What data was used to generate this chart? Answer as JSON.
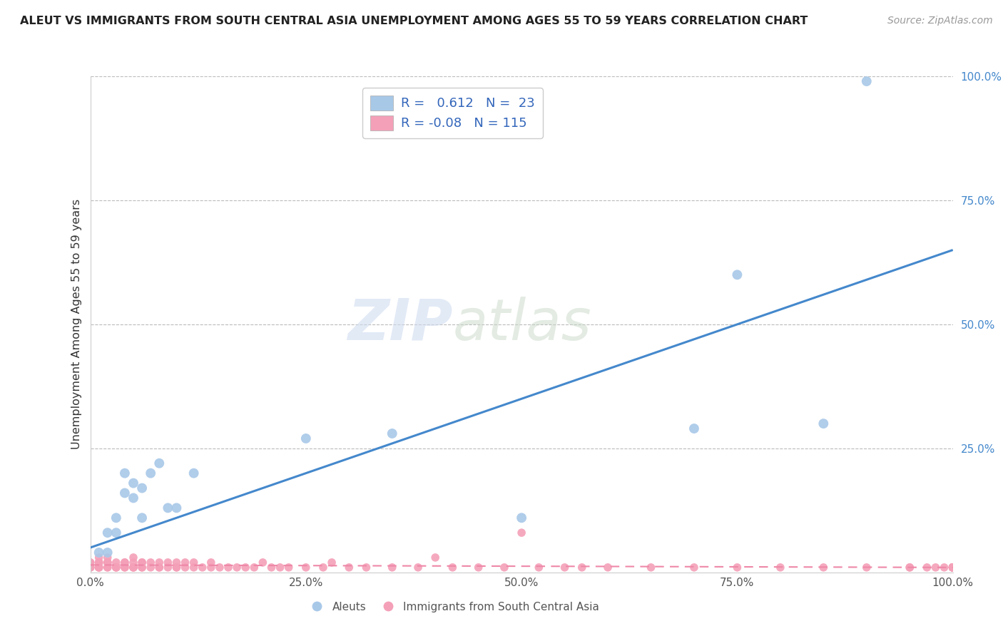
{
  "title": "ALEUT VS IMMIGRANTS FROM SOUTH CENTRAL ASIA UNEMPLOYMENT AMONG AGES 55 TO 59 YEARS CORRELATION CHART",
  "source": "Source: ZipAtlas.com",
  "ylabel": "Unemployment Among Ages 55 to 59 years",
  "xlim": [
    0,
    1
  ],
  "ylim": [
    0,
    1
  ],
  "xtick_labels": [
    "0.0%",
    "25.0%",
    "50.0%",
    "75.0%",
    "100.0%"
  ],
  "xtick_values": [
    0,
    0.25,
    0.5,
    0.75,
    1.0
  ],
  "ytick_labels": [
    "25.0%",
    "50.0%",
    "75.0%",
    "100.0%"
  ],
  "ytick_values": [
    0.25,
    0.5,
    0.75,
    1.0
  ],
  "blue_R": 0.612,
  "blue_N": 23,
  "pink_R": -0.08,
  "pink_N": 115,
  "aleut_color": "#A8C8E8",
  "pink_color": "#F4A0B8",
  "blue_line_color": "#4488CC",
  "pink_line_color": "#EE88A8",
  "grid_color": "#BBBBBB",
  "title_color": "#222222",
  "legend_label_blue": "Aleuts",
  "legend_label_pink": "Immigrants from South Central Asia",
  "watermark_zip": "ZIP",
  "watermark_atlas": "atlas",
  "aleut_x": [
    0.01,
    0.02,
    0.02,
    0.03,
    0.03,
    0.04,
    0.04,
    0.05,
    0.05,
    0.06,
    0.06,
    0.07,
    0.08,
    0.09,
    0.1,
    0.12,
    0.25,
    0.35,
    0.5,
    0.7,
    0.75,
    0.85,
    0.9
  ],
  "aleut_y": [
    0.04,
    0.08,
    0.04,
    0.11,
    0.08,
    0.16,
    0.2,
    0.15,
    0.18,
    0.11,
    0.17,
    0.2,
    0.22,
    0.13,
    0.13,
    0.2,
    0.27,
    0.28,
    0.11,
    0.29,
    0.6,
    0.3,
    0.99
  ],
  "pink_x": [
    0.0,
    0.0,
    0.0,
    0.0,
    0.0,
    0.0,
    0.01,
    0.01,
    0.01,
    0.01,
    0.01,
    0.01,
    0.01,
    0.01,
    0.02,
    0.02,
    0.02,
    0.02,
    0.02,
    0.02,
    0.03,
    0.03,
    0.03,
    0.03,
    0.04,
    0.04,
    0.04,
    0.04,
    0.05,
    0.05,
    0.05,
    0.05,
    0.05,
    0.06,
    0.06,
    0.06,
    0.06,
    0.07,
    0.07,
    0.08,
    0.08,
    0.08,
    0.09,
    0.09,
    0.1,
    0.1,
    0.1,
    0.11,
    0.11,
    0.12,
    0.12,
    0.13,
    0.14,
    0.14,
    0.15,
    0.16,
    0.17,
    0.18,
    0.19,
    0.2,
    0.21,
    0.22,
    0.23,
    0.25,
    0.27,
    0.28,
    0.3,
    0.32,
    0.35,
    0.38,
    0.4,
    0.42,
    0.45,
    0.48,
    0.5,
    0.52,
    0.55,
    0.57,
    0.6,
    0.65,
    0.7,
    0.75,
    0.8,
    0.85,
    0.9,
    0.95,
    0.95,
    0.97,
    0.98,
    0.99,
    1.0,
    1.0,
    1.0,
    1.0,
    1.0,
    1.0,
    1.0,
    1.0,
    1.0,
    1.0,
    1.0,
    1.0,
    1.0,
    1.0,
    1.0,
    1.0,
    1.0,
    1.0,
    1.0,
    1.0,
    1.0
  ],
  "pink_y": [
    0.01,
    0.01,
    0.01,
    0.01,
    0.02,
    0.02,
    0.01,
    0.01,
    0.01,
    0.01,
    0.02,
    0.02,
    0.02,
    0.03,
    0.01,
    0.01,
    0.02,
    0.02,
    0.02,
    0.03,
    0.01,
    0.01,
    0.01,
    0.02,
    0.01,
    0.01,
    0.02,
    0.02,
    0.01,
    0.01,
    0.01,
    0.02,
    0.03,
    0.01,
    0.01,
    0.02,
    0.02,
    0.01,
    0.02,
    0.01,
    0.01,
    0.02,
    0.01,
    0.02,
    0.01,
    0.01,
    0.02,
    0.01,
    0.02,
    0.01,
    0.02,
    0.01,
    0.01,
    0.02,
    0.01,
    0.01,
    0.01,
    0.01,
    0.01,
    0.02,
    0.01,
    0.01,
    0.01,
    0.01,
    0.01,
    0.02,
    0.01,
    0.01,
    0.01,
    0.01,
    0.03,
    0.01,
    0.01,
    0.01,
    0.08,
    0.01,
    0.01,
    0.01,
    0.01,
    0.01,
    0.01,
    0.01,
    0.01,
    0.01,
    0.01,
    0.01,
    0.01,
    0.01,
    0.01,
    0.01,
    0.01,
    0.01,
    0.01,
    0.01,
    0.01,
    0.01,
    0.01,
    0.01,
    0.01,
    0.01,
    0.01,
    0.01,
    0.01,
    0.01,
    0.01,
    0.01,
    0.01,
    0.01,
    0.01,
    0.01,
    0.01
  ],
  "blue_line_x0": 0.0,
  "blue_line_y0": 0.05,
  "blue_line_x1": 1.0,
  "blue_line_y1": 0.65,
  "pink_line_x0": 0.0,
  "pink_line_y0": 0.015,
  "pink_line_x1": 1.0,
  "pink_line_y1": 0.01
}
